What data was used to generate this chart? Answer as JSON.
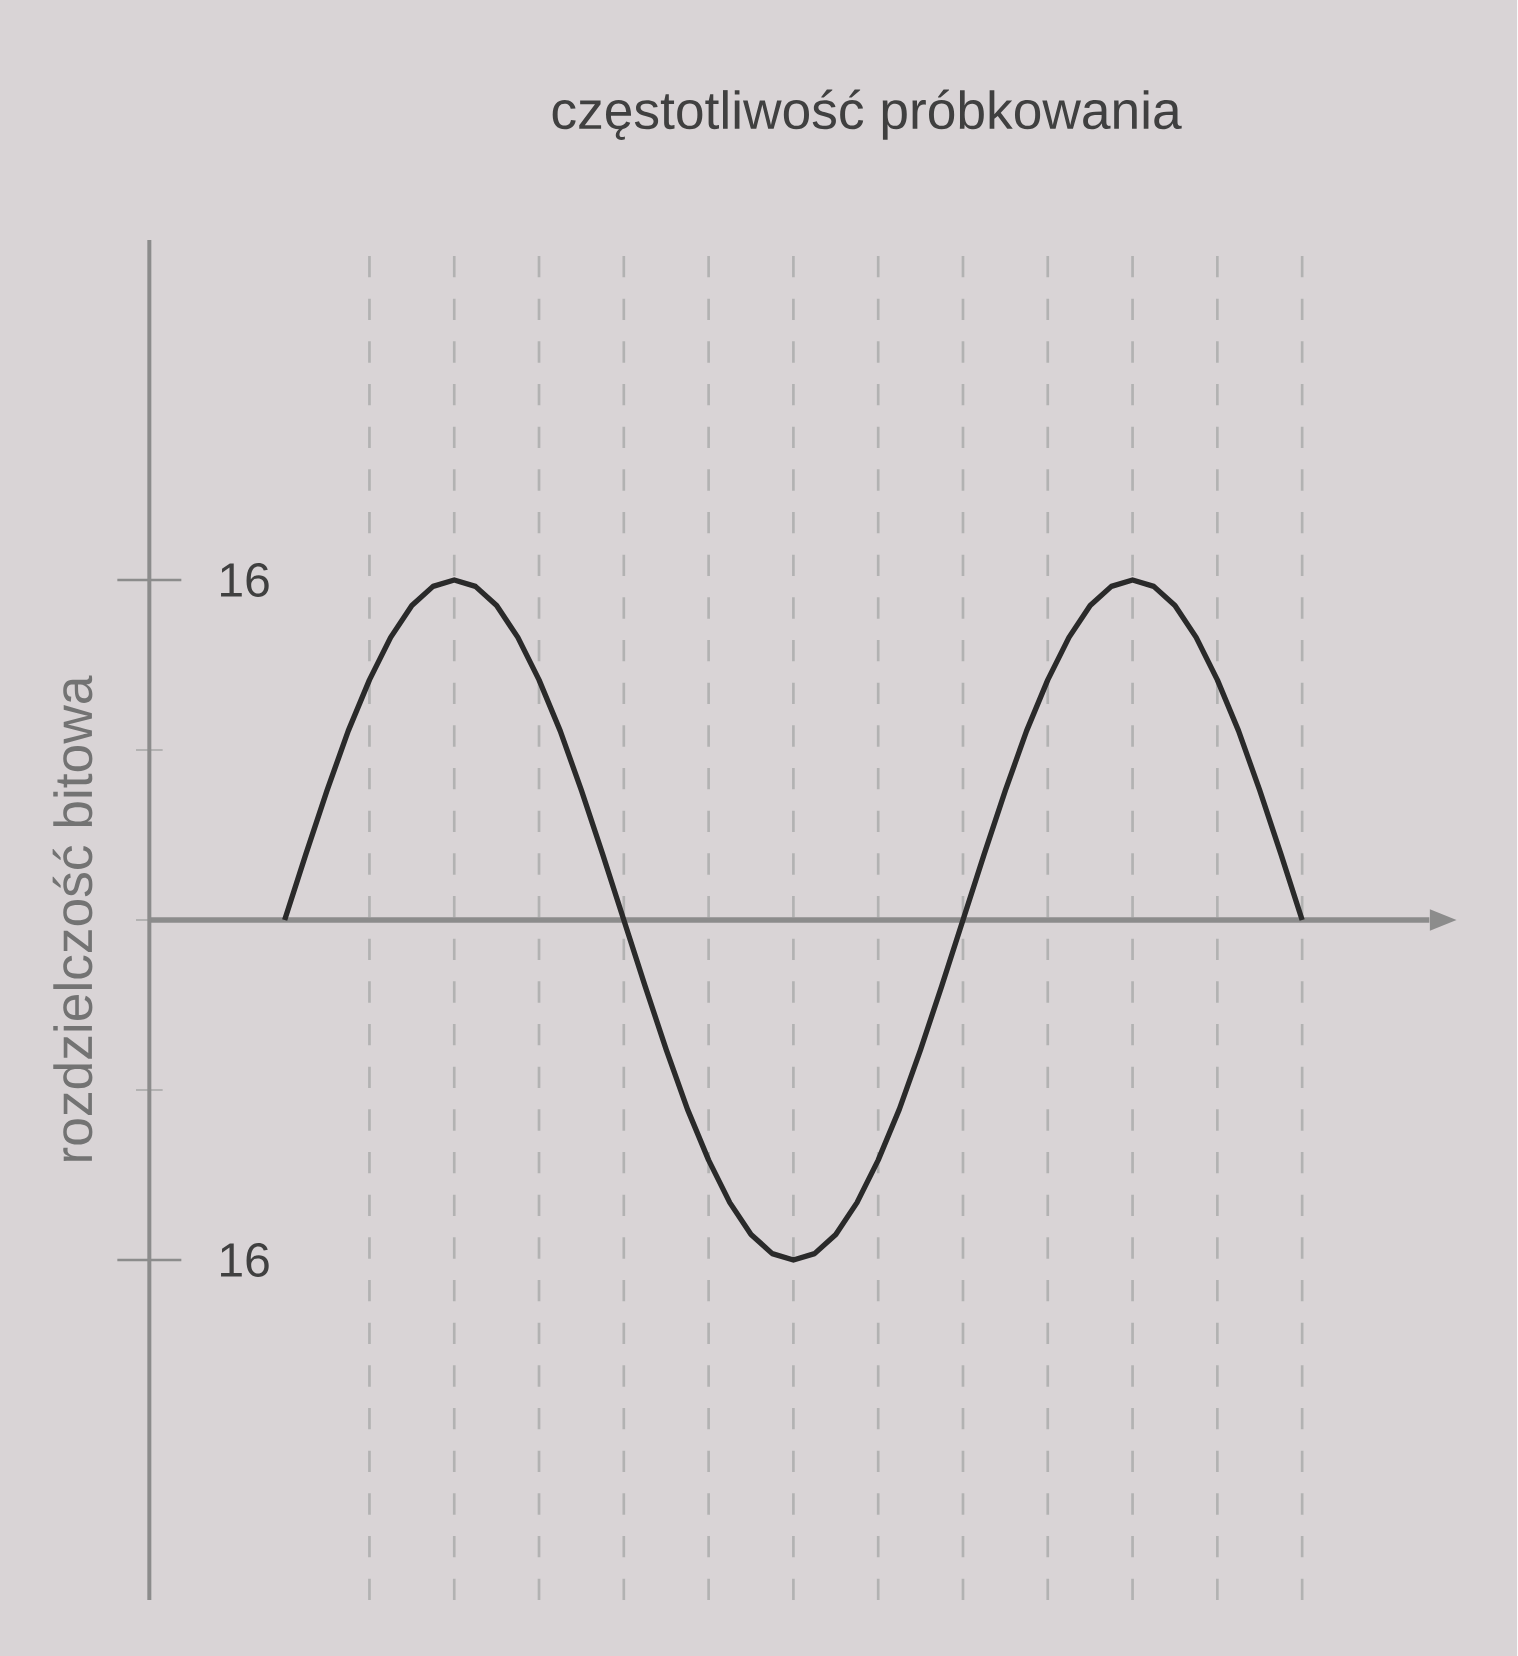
{
  "chart_data": {
    "type": "line",
    "title": "częstotliwość próbkowania",
    "ylabel": "rozdzielczość bitowa",
    "categories": [
      null,
      null,
      null,
      null,
      null,
      null,
      null,
      null,
      null,
      null,
      null,
      null,
      null,
      null,
      null,
      null,
      null,
      null,
      null,
      null,
      null,
      null,
      null,
      null,
      null,
      null,
      null,
      null,
      null,
      null,
      null,
      null,
      null,
      null,
      null,
      null,
      null,
      null,
      null,
      null,
      null,
      null,
      null,
      null,
      null,
      null,
      null,
      null,
      null
    ],
    "values": [
      0,
      3.1,
      6.1,
      8.9,
      11.3,
      13.3,
      14.8,
      15.7,
      16,
      15.7,
      14.8,
      13.3,
      11.3,
      8.9,
      6.1,
      3.1,
      0,
      -3.1,
      -6.1,
      -8.9,
      -11.3,
      -13.3,
      -14.8,
      -15.7,
      -16,
      -15.7,
      -14.8,
      -13.3,
      -11.3,
      -8.9,
      -6.1,
      -3.1,
      0,
      3.1,
      6.1,
      8.9,
      11.3,
      13.3,
      14.8,
      15.7,
      16,
      15.7,
      14.8,
      13.3,
      11.3,
      8.9,
      6.1,
      3.1,
      0
    ],
    "color": "#2a2a2a",
    "ylim": [
      -32,
      32
    ],
    "yticks": [
      {
        "value": -16,
        "label": "16"
      },
      16
    ],
    "tick_labels": "y",
    "grid": "x",
    "marker": "none",
    "line_style": "solid"
  }
}
